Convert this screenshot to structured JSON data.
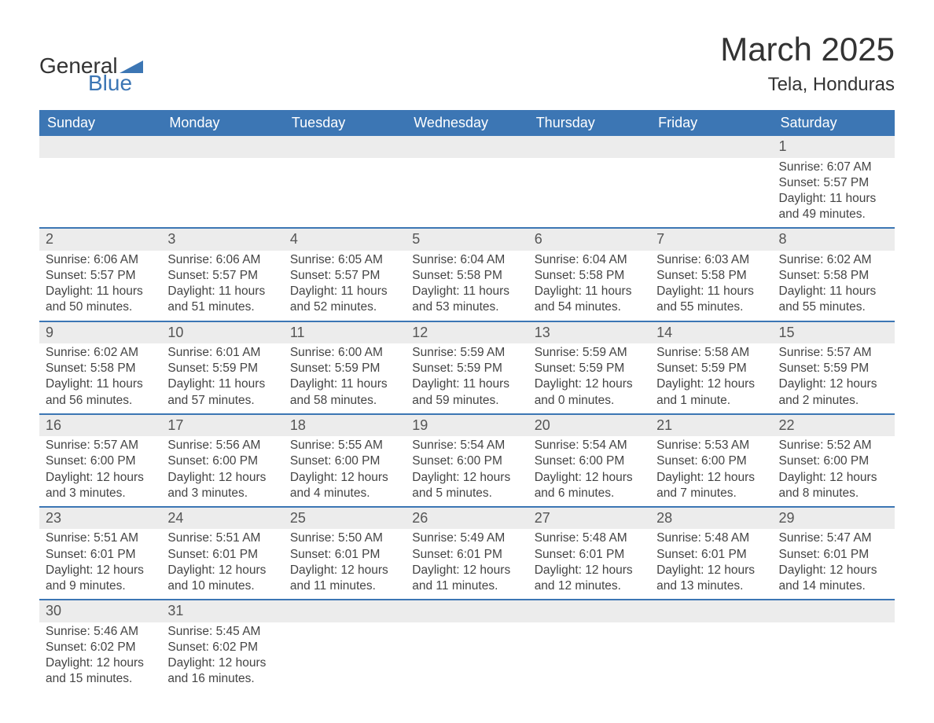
{
  "logo": {
    "text1": "General",
    "text2": "Blue",
    "color_text": "#333333",
    "color_blue": "#3c76b4"
  },
  "title": "March 2025",
  "location": "Tela, Honduras",
  "colors": {
    "header_bg": "#3c76b4",
    "header_text": "#ffffff",
    "daynum_bg": "#ececec",
    "border": "#3c76b4",
    "text": "#444444",
    "background": "#ffffff"
  },
  "weekdays": [
    "Sunday",
    "Monday",
    "Tuesday",
    "Wednesday",
    "Thursday",
    "Friday",
    "Saturday"
  ],
  "weeks": [
    [
      null,
      null,
      null,
      null,
      null,
      null,
      {
        "day": "1",
        "sunrise": "Sunrise: 6:07 AM",
        "sunset": "Sunset: 5:57 PM",
        "daylight1": "Daylight: 11 hours",
        "daylight2": "and 49 minutes."
      }
    ],
    [
      {
        "day": "2",
        "sunrise": "Sunrise: 6:06 AM",
        "sunset": "Sunset: 5:57 PM",
        "daylight1": "Daylight: 11 hours",
        "daylight2": "and 50 minutes."
      },
      {
        "day": "3",
        "sunrise": "Sunrise: 6:06 AM",
        "sunset": "Sunset: 5:57 PM",
        "daylight1": "Daylight: 11 hours",
        "daylight2": "and 51 minutes."
      },
      {
        "day": "4",
        "sunrise": "Sunrise: 6:05 AM",
        "sunset": "Sunset: 5:57 PM",
        "daylight1": "Daylight: 11 hours",
        "daylight2": "and 52 minutes."
      },
      {
        "day": "5",
        "sunrise": "Sunrise: 6:04 AM",
        "sunset": "Sunset: 5:58 PM",
        "daylight1": "Daylight: 11 hours",
        "daylight2": "and 53 minutes."
      },
      {
        "day": "6",
        "sunrise": "Sunrise: 6:04 AM",
        "sunset": "Sunset: 5:58 PM",
        "daylight1": "Daylight: 11 hours",
        "daylight2": "and 54 minutes."
      },
      {
        "day": "7",
        "sunrise": "Sunrise: 6:03 AM",
        "sunset": "Sunset: 5:58 PM",
        "daylight1": "Daylight: 11 hours",
        "daylight2": "and 55 minutes."
      },
      {
        "day": "8",
        "sunrise": "Sunrise: 6:02 AM",
        "sunset": "Sunset: 5:58 PM",
        "daylight1": "Daylight: 11 hours",
        "daylight2": "and 55 minutes."
      }
    ],
    [
      {
        "day": "9",
        "sunrise": "Sunrise: 6:02 AM",
        "sunset": "Sunset: 5:58 PM",
        "daylight1": "Daylight: 11 hours",
        "daylight2": "and 56 minutes."
      },
      {
        "day": "10",
        "sunrise": "Sunrise: 6:01 AM",
        "sunset": "Sunset: 5:59 PM",
        "daylight1": "Daylight: 11 hours",
        "daylight2": "and 57 minutes."
      },
      {
        "day": "11",
        "sunrise": "Sunrise: 6:00 AM",
        "sunset": "Sunset: 5:59 PM",
        "daylight1": "Daylight: 11 hours",
        "daylight2": "and 58 minutes."
      },
      {
        "day": "12",
        "sunrise": "Sunrise: 5:59 AM",
        "sunset": "Sunset: 5:59 PM",
        "daylight1": "Daylight: 11 hours",
        "daylight2": "and 59 minutes."
      },
      {
        "day": "13",
        "sunrise": "Sunrise: 5:59 AM",
        "sunset": "Sunset: 5:59 PM",
        "daylight1": "Daylight: 12 hours",
        "daylight2": "and 0 minutes."
      },
      {
        "day": "14",
        "sunrise": "Sunrise: 5:58 AM",
        "sunset": "Sunset: 5:59 PM",
        "daylight1": "Daylight: 12 hours",
        "daylight2": "and 1 minute."
      },
      {
        "day": "15",
        "sunrise": "Sunrise: 5:57 AM",
        "sunset": "Sunset: 5:59 PM",
        "daylight1": "Daylight: 12 hours",
        "daylight2": "and 2 minutes."
      }
    ],
    [
      {
        "day": "16",
        "sunrise": "Sunrise: 5:57 AM",
        "sunset": "Sunset: 6:00 PM",
        "daylight1": "Daylight: 12 hours",
        "daylight2": "and 3 minutes."
      },
      {
        "day": "17",
        "sunrise": "Sunrise: 5:56 AM",
        "sunset": "Sunset: 6:00 PM",
        "daylight1": "Daylight: 12 hours",
        "daylight2": "and 3 minutes."
      },
      {
        "day": "18",
        "sunrise": "Sunrise: 5:55 AM",
        "sunset": "Sunset: 6:00 PM",
        "daylight1": "Daylight: 12 hours",
        "daylight2": "and 4 minutes."
      },
      {
        "day": "19",
        "sunrise": "Sunrise: 5:54 AM",
        "sunset": "Sunset: 6:00 PM",
        "daylight1": "Daylight: 12 hours",
        "daylight2": "and 5 minutes."
      },
      {
        "day": "20",
        "sunrise": "Sunrise: 5:54 AM",
        "sunset": "Sunset: 6:00 PM",
        "daylight1": "Daylight: 12 hours",
        "daylight2": "and 6 minutes."
      },
      {
        "day": "21",
        "sunrise": "Sunrise: 5:53 AM",
        "sunset": "Sunset: 6:00 PM",
        "daylight1": "Daylight: 12 hours",
        "daylight2": "and 7 minutes."
      },
      {
        "day": "22",
        "sunrise": "Sunrise: 5:52 AM",
        "sunset": "Sunset: 6:00 PM",
        "daylight1": "Daylight: 12 hours",
        "daylight2": "and 8 minutes."
      }
    ],
    [
      {
        "day": "23",
        "sunrise": "Sunrise: 5:51 AM",
        "sunset": "Sunset: 6:01 PM",
        "daylight1": "Daylight: 12 hours",
        "daylight2": "and 9 minutes."
      },
      {
        "day": "24",
        "sunrise": "Sunrise: 5:51 AM",
        "sunset": "Sunset: 6:01 PM",
        "daylight1": "Daylight: 12 hours",
        "daylight2": "and 10 minutes."
      },
      {
        "day": "25",
        "sunrise": "Sunrise: 5:50 AM",
        "sunset": "Sunset: 6:01 PM",
        "daylight1": "Daylight: 12 hours",
        "daylight2": "and 11 minutes."
      },
      {
        "day": "26",
        "sunrise": "Sunrise: 5:49 AM",
        "sunset": "Sunset: 6:01 PM",
        "daylight1": "Daylight: 12 hours",
        "daylight2": "and 11 minutes."
      },
      {
        "day": "27",
        "sunrise": "Sunrise: 5:48 AM",
        "sunset": "Sunset: 6:01 PM",
        "daylight1": "Daylight: 12 hours",
        "daylight2": "and 12 minutes."
      },
      {
        "day": "28",
        "sunrise": "Sunrise: 5:48 AM",
        "sunset": "Sunset: 6:01 PM",
        "daylight1": "Daylight: 12 hours",
        "daylight2": "and 13 minutes."
      },
      {
        "day": "29",
        "sunrise": "Sunrise: 5:47 AM",
        "sunset": "Sunset: 6:01 PM",
        "daylight1": "Daylight: 12 hours",
        "daylight2": "and 14 minutes."
      }
    ],
    [
      {
        "day": "30",
        "sunrise": "Sunrise: 5:46 AM",
        "sunset": "Sunset: 6:02 PM",
        "daylight1": "Daylight: 12 hours",
        "daylight2": "and 15 minutes."
      },
      {
        "day": "31",
        "sunrise": "Sunrise: 5:45 AM",
        "sunset": "Sunset: 6:02 PM",
        "daylight1": "Daylight: 12 hours",
        "daylight2": "and 16 minutes."
      },
      null,
      null,
      null,
      null,
      null
    ]
  ]
}
